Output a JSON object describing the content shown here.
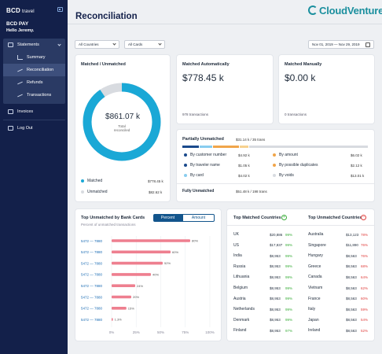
{
  "sidebar": {
    "logo": "BCD",
    "logo_suffix": "travel",
    "brand": "BCD PAY",
    "greeting": "Hello Jeremy.",
    "items": [
      {
        "label": "Statements",
        "icon": "box-icon"
      },
      {
        "label": "Summary",
        "icon": "chart-icon"
      },
      {
        "label": "Reconciliation",
        "icon": "trend-icon"
      },
      {
        "label": "Refunds",
        "icon": "refund-icon"
      },
      {
        "label": "Transactions",
        "icon": "transactions-icon"
      },
      {
        "label": "Invoices",
        "icon": "invoice-icon"
      },
      {
        "label": "Log Out",
        "icon": "logout-icon"
      }
    ]
  },
  "header": {
    "title": "Reconciliation",
    "brand_logo": "CloudVenture"
  },
  "filters": {
    "countries": "All Countries",
    "cards": "All Cards",
    "date_range": "Nov 01, 2019 — Nov 29, 2019"
  },
  "matched_unmatched": {
    "title": "Matched / Unmatched",
    "total_value": "$861.07 k",
    "total_label": "Total reconciled",
    "matched_label": "Matched",
    "matched_value": "$778.45 k",
    "unmatched_label": "Unmatched",
    "unmatched_value": "$82.62 k",
    "matched_fraction": 0.904,
    "colors": {
      "matched": "#1aa8d6",
      "unmatched": "#d8dbe0"
    }
  },
  "matched_auto": {
    "title": "Matched Automatically",
    "value": "$778.45 k",
    "footer": "978 transactions"
  },
  "matched_manual": {
    "title": "Matched Manually",
    "value": "$0.00 k",
    "footer": "0 transactions"
  },
  "partial": {
    "title": "Partially Unmatched",
    "summary": "$31.14 k / 35 trans",
    "bar_segments": [
      {
        "color": "#1a4a8c",
        "value": 0.09
      },
      {
        "color": "#89cdef",
        "value": 0.07
      },
      {
        "color": "#f0a54a",
        "value": 0.14
      },
      {
        "color": "#f7d18f",
        "value": 0.05
      },
      {
        "color": "#d8dbe0",
        "value": 0.65
      }
    ],
    "left_items": [
      {
        "label": "By customer number",
        "value": "$4.92 k",
        "color": "#1a4a8c"
      },
      {
        "label": "By traveler name",
        "value": "$1.05 k",
        "color": "#1a4a8c"
      },
      {
        "label": "By card",
        "value": "$4.02 k",
        "color": "#89cdef"
      }
    ],
    "right_items": [
      {
        "label": "By amount",
        "value": "$6.02 k",
        "color": "#f0a54a"
      },
      {
        "label": "By possible duplicates",
        "value": "$2.12 k",
        "color": "#f0a54a"
      },
      {
        "label": "By voids",
        "value": "$13.01 k",
        "color": "#d8dbe0"
      }
    ],
    "fully_label": "Fully Unmatched",
    "fully_value": "$51.48 k / 198 trans"
  },
  "bank_cards": {
    "title": "Top Unmatched by Bank Cards",
    "subtitle": "Percent of unmatched transactions",
    "toggle": {
      "percent": "Percent",
      "amount": "Amount"
    },
    "accent": "#13558c",
    "bar_color": "#ee7f8f"
  },
  "chart_data": {
    "type": "bar",
    "orientation": "horizontal",
    "categories": [
      "5472 — 7880",
      "5472 — 7880",
      "5472 — 7880",
      "5472 — 7880",
      "5472 — 7880",
      "5472 — 7880",
      "5472 — 7880",
      "5472 — 7880"
    ],
    "values": [
      80,
      60,
      52,
      40,
      24,
      20,
      15,
      1.3
    ],
    "value_labels": [
      "80%",
      "60%",
      "52%",
      "40%",
      "24%",
      "20%",
      "15%",
      "1.3%"
    ],
    "x_ticks": [
      "0%",
      "25%",
      "50%",
      "75%",
      "100%"
    ],
    "xlim": [
      0,
      100
    ],
    "title": "Top Unmatched by Bank Cards"
  },
  "countries": {
    "matched_title": "Top Matched Countries",
    "unmatched_title": "Top Unmatched Countries",
    "matched": [
      {
        "name": "UK",
        "value": "$20,886",
        "pct": "99%"
      },
      {
        "name": "US",
        "value": "$17,837",
        "pct": "99%"
      },
      {
        "name": "India",
        "value": "$8,953",
        "pct": "99%"
      },
      {
        "name": "Russia",
        "value": "$8,953",
        "pct": "99%"
      },
      {
        "name": "Lithuania",
        "value": "$8,953",
        "pct": "99%"
      },
      {
        "name": "Belgium",
        "value": "$8,953",
        "pct": "99%"
      },
      {
        "name": "Austria",
        "value": "$8,953",
        "pct": "99%"
      },
      {
        "name": "Netherlands",
        "value": "$8,953",
        "pct": "99%"
      },
      {
        "name": "Denmark",
        "value": "$8,953",
        "pct": "99%"
      },
      {
        "name": "Finland",
        "value": "$8,953",
        "pct": "97%"
      }
    ],
    "unmatched": [
      {
        "name": "Australia",
        "value": "$13,123",
        "pct": "78%"
      },
      {
        "name": "Singapore",
        "value": "$11,890",
        "pct": "76%"
      },
      {
        "name": "Hungary",
        "value": "$8,563",
        "pct": "76%"
      },
      {
        "name": "Greece",
        "value": "$8,563",
        "pct": "68%"
      },
      {
        "name": "Canada",
        "value": "$8,563",
        "pct": "64%"
      },
      {
        "name": "Vietnam",
        "value": "$8,563",
        "pct": "62%"
      },
      {
        "name": "France",
        "value": "$8,563",
        "pct": "60%"
      },
      {
        "name": "Italy",
        "value": "$8,563",
        "pct": "59%"
      },
      {
        "name": "Japan",
        "value": "$8,563",
        "pct": "54%"
      },
      {
        "name": "Ireland",
        "value": "$8,563",
        "pct": "52%"
      }
    ]
  }
}
